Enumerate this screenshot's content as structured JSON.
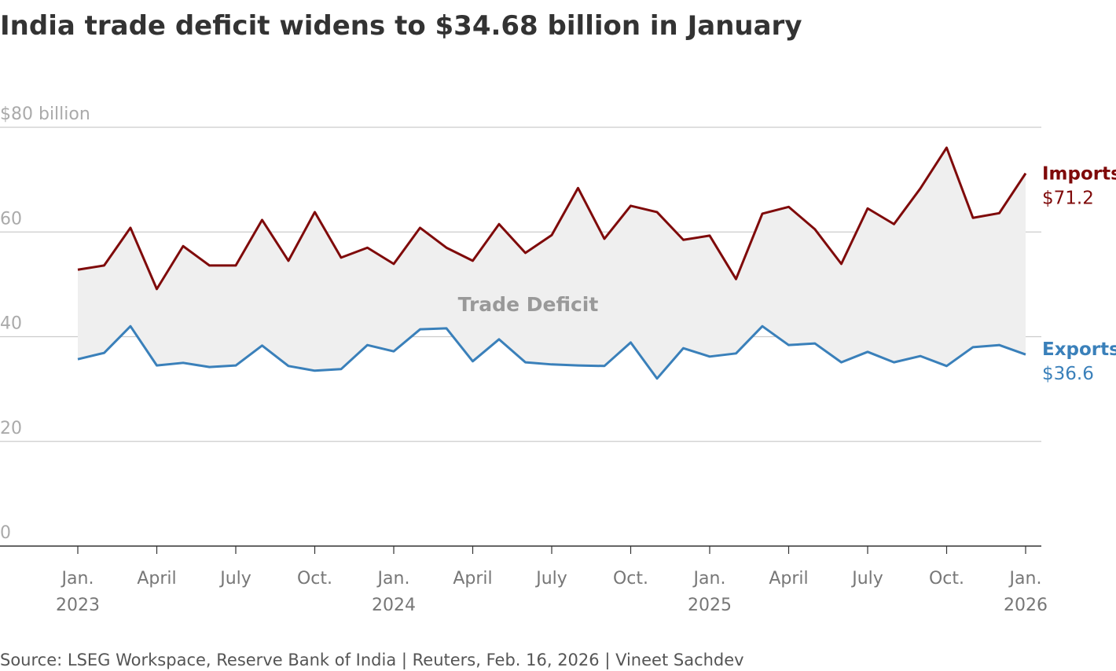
{
  "chart_data": {
    "type": "line",
    "title": "India trade deficit widens to $34.68 billion in January",
    "annotation": "Trade Deficit",
    "source": "Source: LSEG Workspace, Reserve Bank of India | Reuters, Feb. 16, 2026 | Vineet Sachdev",
    "categories": [
      "Jan. 2023",
      null,
      null,
      "April",
      null,
      null,
      "July",
      null,
      null,
      "Oct.",
      null,
      null,
      "Jan. 2024",
      null,
      null,
      "April",
      null,
      null,
      "July",
      null,
      null,
      "Oct.",
      null,
      null,
      "Jan. 2025",
      null,
      null,
      "April",
      null,
      null,
      "July",
      null,
      null,
      "Oct.",
      null,
      null,
      "Jan. 2026"
    ],
    "series": [
      {
        "name": "Imports",
        "color": "#7f0a0a",
        "values": [
          52.8,
          53.6,
          60.8,
          49.1,
          57.3,
          53.6,
          53.6,
          62.3,
          54.5,
          63.8,
          55.1,
          57.0,
          53.9,
          60.8,
          57.0,
          54.5,
          61.5,
          56.0,
          59.4,
          68.4,
          58.7,
          65.0,
          63.8,
          58.5,
          59.3,
          51.0,
          63.5,
          64.8,
          60.5,
          53.9,
          64.5,
          61.5,
          68.3,
          76.1,
          62.7,
          63.6,
          71.2
        ],
        "value_labels": [
          null,
          null,
          null,
          null,
          null,
          null,
          null,
          null,
          null,
          null,
          null,
          null,
          null,
          null,
          null,
          null,
          null,
          null,
          null,
          null,
          null,
          null,
          null,
          null,
          null,
          null,
          null,
          null,
          null,
          null,
          null,
          null,
          null,
          null,
          null,
          null,
          "$71.2"
        ]
      },
      {
        "name": "Exports",
        "color": "#3a80ba",
        "values": [
          35.7,
          36.9,
          42.0,
          34.5,
          35.0,
          34.2,
          34.5,
          38.3,
          34.4,
          33.5,
          33.8,
          38.4,
          37.2,
          41.4,
          41.6,
          35.3,
          39.5,
          35.1,
          34.7,
          34.5,
          34.4,
          38.9,
          32.0,
          37.8,
          36.2,
          36.8,
          42.0,
          38.4,
          38.7,
          35.1,
          37.1,
          35.1,
          36.3,
          34.4,
          38.0,
          38.4,
          36.6
        ],
        "value_labels": [
          null,
          null,
          null,
          null,
          null,
          null,
          null,
          null,
          null,
          null,
          null,
          null,
          null,
          null,
          null,
          null,
          null,
          null,
          null,
          null,
          null,
          null,
          null,
          null,
          null,
          null,
          null,
          null,
          null,
          null,
          null,
          null,
          null,
          null,
          null,
          null,
          "$36.6"
        ]
      }
    ],
    "area_color": "#efefef",
    "ylim": [
      0,
      80
    ],
    "yticks": [
      0,
      20,
      40,
      60,
      {
        "value": 80,
        "label": "$80 billion"
      }
    ],
    "grid": true
  }
}
